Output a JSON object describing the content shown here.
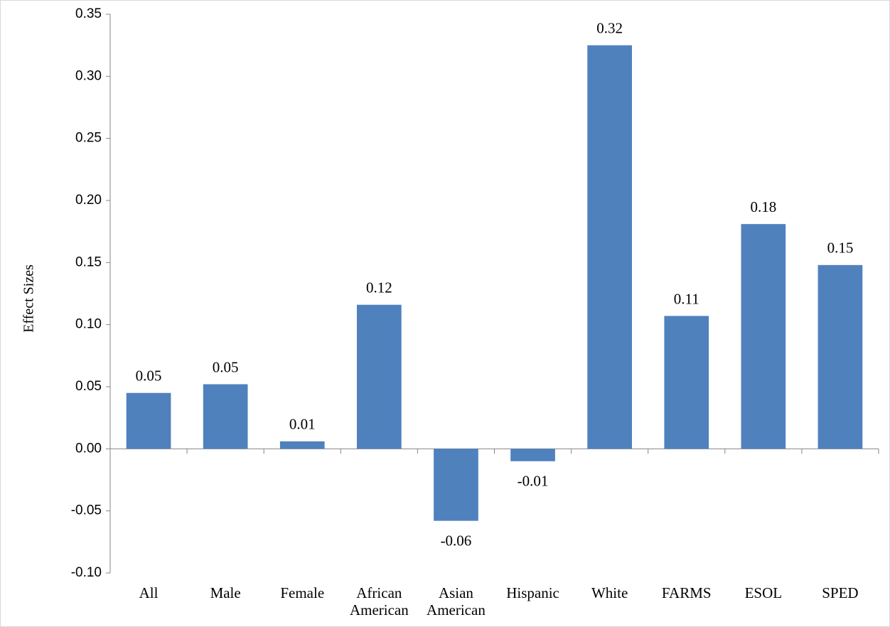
{
  "chart_data": {
    "type": "bar",
    "y_label": "Effect Sizes",
    "categories": [
      "All",
      "Male",
      "Female",
      "African American",
      "Asian American",
      "Hispanic",
      "White",
      "FARMS",
      "ESOL",
      "SPED"
    ],
    "values": [
      0.045,
      0.052,
      0.006,
      0.116,
      -0.058,
      -0.01,
      0.325,
      0.107,
      0.181,
      0.148
    ],
    "value_labels": [
      "0.05",
      "0.05",
      "0.01",
      "0.12",
      "-0.06",
      "-0.01",
      "0.32",
      "0.11",
      "0.18",
      "0.15"
    ],
    "color": "#4f81bd",
    "ylim": [
      -0.1,
      0.35
    ],
    "yticks": [
      {
        "value": -0.1,
        "label": "-0.10"
      },
      -0.05,
      {
        "value": 0,
        "label": "0.00"
      },
      0.05,
      {
        "value": 0.1,
        "label": "0.10"
      },
      0.15,
      {
        "value": 0.2,
        "label": "0.20"
      },
      0.25,
      {
        "value": 0.3,
        "label": "0.30"
      },
      0.35
    ],
    "grid": false
  }
}
